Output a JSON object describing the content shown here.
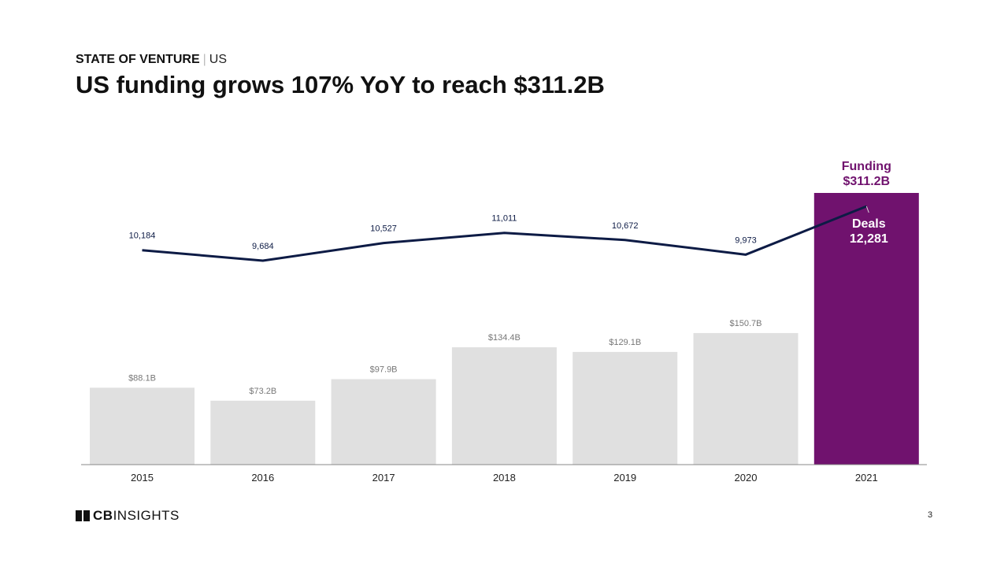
{
  "header": {
    "kicker": "STATE OF VENTURE",
    "kicker_region": "US",
    "title": "US funding grows 107% YoY to reach $311.2B"
  },
  "chart_data": {
    "type": "bar",
    "title": "US funding grows 107% YoY to reach $311.2B",
    "categories": [
      "2015",
      "2016",
      "2017",
      "2018",
      "2019",
      "2020",
      "2021"
    ],
    "series": [
      {
        "name": "Funding",
        "type": "bar",
        "unit": "$B",
        "values": [
          88.1,
          73.2,
          97.9,
          134.4,
          129.1,
          150.7,
          311.2
        ],
        "labels": [
          "$88.1B",
          "$73.2B",
          "$97.9B",
          "$134.4B",
          "$129.1B",
          "$150.7B",
          "$311.2B"
        ]
      },
      {
        "name": "Deals",
        "type": "line",
        "values": [
          10184,
          9684,
          10527,
          11011,
          10672,
          9973,
          12281
        ],
        "labels": [
          "10,184",
          "9,684",
          "10,527",
          "11,011",
          "10,672",
          "9,973",
          "12,281"
        ]
      }
    ],
    "highlight": {
      "category": "2021",
      "funding_label": "Funding",
      "deals_label": "Deals"
    },
    "colors": {
      "bar": "#e0e0e0",
      "highlight": "#70126e",
      "line": "#0d1b45",
      "bar_label": "#777777"
    }
  },
  "footer": {
    "logo_a": "CB",
    "logo_b": "INSIGHTS",
    "page": "3"
  }
}
